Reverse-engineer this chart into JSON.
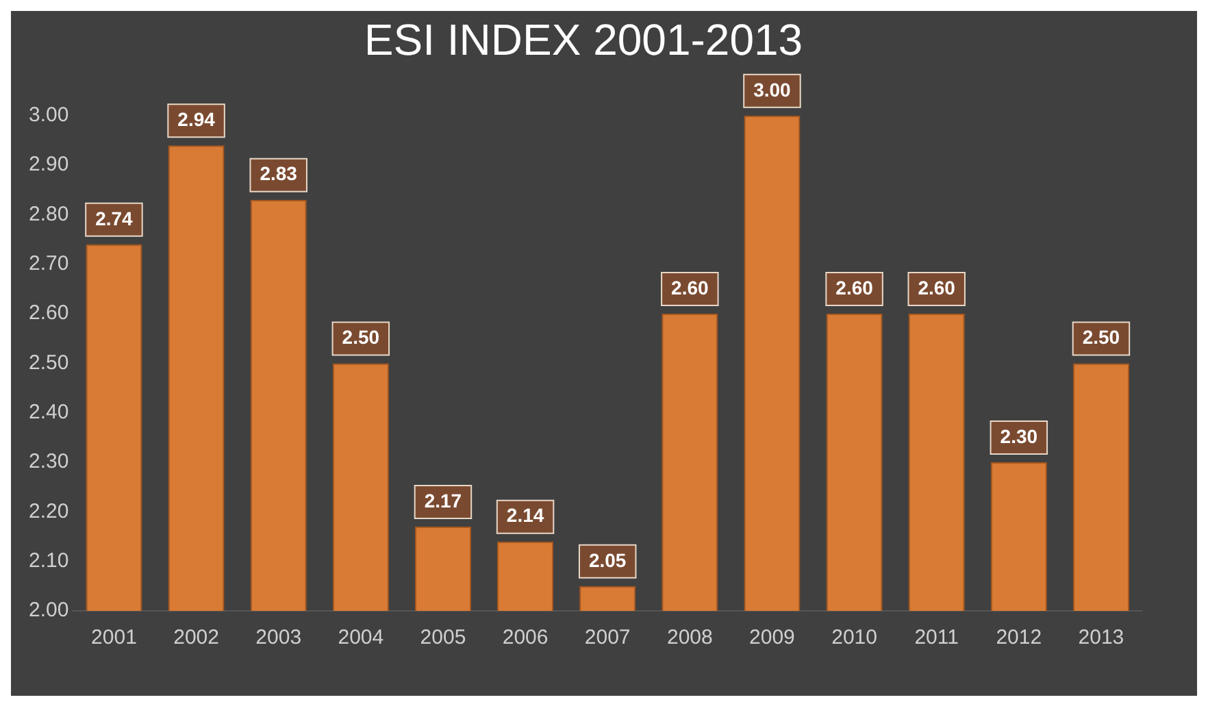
{
  "chart_data": {
    "type": "bar",
    "title": "ESI INDEX 2001-2013",
    "categories": [
      "2001",
      "2002",
      "2003",
      "2004",
      "2005",
      "2006",
      "2007",
      "2008",
      "2009",
      "2010",
      "2011",
      "2012",
      "2013"
    ],
    "values": [
      2.74,
      2.94,
      2.83,
      2.5,
      2.17,
      2.14,
      2.05,
      2.6,
      3.0,
      2.6,
      2.6,
      2.3,
      2.5
    ],
    "value_labels": [
      "2.74",
      "2.94",
      "2.83",
      "2.50",
      "2.17",
      "2.14",
      "2.05",
      "2.60",
      "3.00",
      "2.60",
      "2.60",
      "2.30",
      "2.50"
    ],
    "color": "#d97b34",
    "ylim": [
      2.0,
      3.0
    ],
    "yticks": [
      {
        "value": 2,
        "label": "2.00"
      },
      {
        "value": 2.1,
        "label": "2.10"
      },
      {
        "value": 2.2,
        "label": "2.20"
      },
      {
        "value": 2.3,
        "label": "2.30"
      },
      {
        "value": 2.4,
        "label": "2.40"
      },
      {
        "value": 2.5,
        "label": "2.50"
      },
      {
        "value": 2.6,
        "label": "2.60"
      },
      {
        "value": 2.7,
        "label": "2.70"
      },
      {
        "value": 2.8,
        "label": "2.80"
      },
      {
        "value": 2.9,
        "label": "2.90"
      },
      {
        "value": 3,
        "label": "3.00"
      }
    ],
    "grid": false,
    "legend": false
  }
}
